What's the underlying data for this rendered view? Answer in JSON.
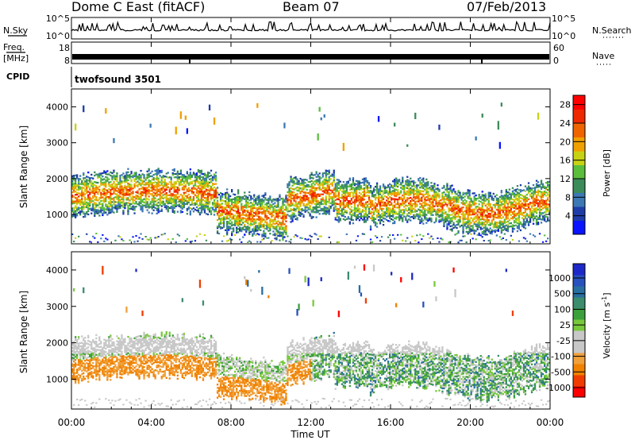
{
  "header": {
    "title": "Dome C East (fitACF)",
    "beam": "Beam 07",
    "date": "07/Feb/2013"
  },
  "top_panels": {
    "nsky_label": "N.Sky",
    "nsky_ticks": [
      "10^5",
      "10^0"
    ],
    "nsearch_label": "N.Search",
    "freq_label": "Freq.",
    "freq_unit": "[MHz]",
    "freq_ticks": [
      "18",
      "8"
    ],
    "nave_label": "Nave",
    "nave_ticks": [
      "60",
      "0"
    ],
    "cpid_label": "CPID",
    "cpid_value": "twofsound 3501"
  },
  "colors": {
    "power": [
      "#0a14ff",
      "#1e3ca8",
      "#3c78b4",
      "#3c8c5a",
      "#5abe3c",
      "#c8d214",
      "#f0a000",
      "#f06400",
      "#f02800",
      "#ff0000"
    ],
    "velocity_ramp": [
      "#ff0000",
      "#f03c00",
      "#f08200",
      "#f0a03c",
      "#c8c8c8",
      "#c8c8c8",
      "#78c83c",
      "#3ca03c",
      "#3c8c6e",
      "#286ea0",
      "#2850be",
      "#1e28c8"
    ]
  },
  "chart_data": [
    {
      "type": "line",
      "name": "N.Sky / N.Search / Freq. / Nave",
      "x": [
        "00:00",
        "04:00",
        "08:00",
        "12:00",
        "16:00",
        "20:00",
        "00:00"
      ],
      "y_left_ticks": [
        "10^5",
        "10^0",
        "18",
        "8"
      ],
      "y_right_ticks": [
        "10^5",
        "10^0",
        "60",
        "0"
      ]
    },
    {
      "type": "heatmap",
      "quantity": "Power",
      "ylabel": "Slant Range [km]",
      "yticks": [
        1000,
        2000,
        3000,
        4000
      ],
      "ylim": [
        180,
        4500
      ],
      "x": [
        "00:00",
        "04:00",
        "08:00",
        "12:00",
        "16:00",
        "20:00",
        "00:00"
      ],
      "colorbar_label": "Power [dB]",
      "colorbar_ticks": [
        4,
        8,
        12,
        16,
        20,
        24,
        28
      ],
      "colorbar_range": [
        0,
        30
      ]
    },
    {
      "type": "heatmap",
      "quantity": "Velocity",
      "ylabel": "Slant Range [km]",
      "yticks": [
        1000,
        2000,
        3000,
        4000
      ],
      "ylim": [
        180,
        4500
      ],
      "x": [
        "00:00",
        "04:00",
        "08:00",
        "12:00",
        "16:00",
        "20:00",
        "00:00"
      ],
      "xlabel": "Time UT",
      "colorbar_label": "Velocity [m s",
      "colorbar_unit_exponent": "-1",
      "colorbar_ticks": [
        "1000",
        "500",
        "100",
        "25",
        "-25",
        "-100",
        "-500",
        "-1000"
      ]
    }
  ]
}
